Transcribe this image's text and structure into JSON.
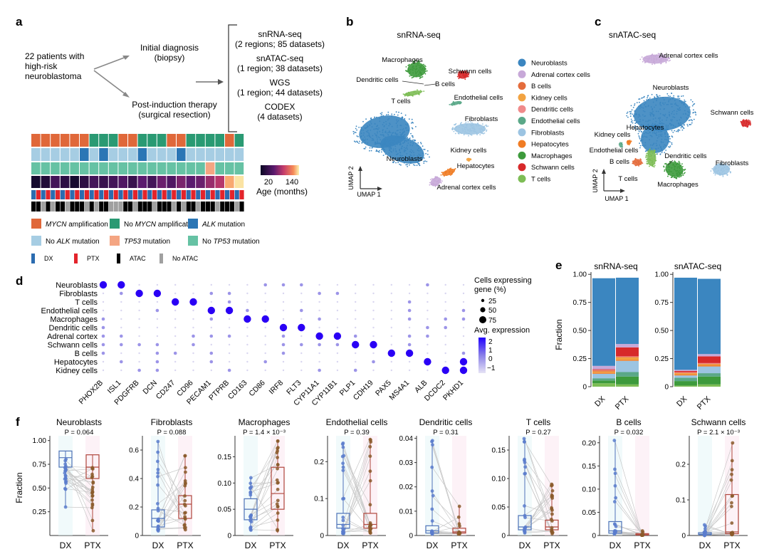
{
  "colors": {
    "neuroblasts": "#3b86c0",
    "adrenal": "#c7a8d8",
    "bcells": "#e46c3c",
    "kidney": "#f2a341",
    "dendritic": "#f08a8a",
    "endothelial": "#5aa888",
    "fibroblasts": "#9cc4e2",
    "hepatocytes": "#f07c24",
    "macrophages": "#3d9a3c",
    "schwann": "#d7292a",
    "tcells": "#7dbd55",
    "mycn": "#e0683a",
    "nomycn": "#2a9a73",
    "alk": "#2b76b5",
    "noalk": "#a6cde3",
    "tp53": "#f4a582",
    "notp53": "#66c2a4",
    "dx": "#2b6cb0",
    "ptx": "#e3242b",
    "atac": "#000000",
    "noatac": "#a0a0a0",
    "dx_box": "#4f73b8",
    "ptx_box": "#b0473d",
    "dx_dot": "#5b7ccc",
    "ptx_dot": "#8b5a2b"
  },
  "panel_a": {
    "label": "a",
    "patients": "22 patients with\nhigh-risk\nneuroblastoma",
    "initial": "Initial diagnosis\n(biopsy)",
    "post": "Post-induction therapy\n(surgical resection)",
    "datasets": [
      {
        "title": "snRNA-seq",
        "detail": "(2 regions; 85 datasets)"
      },
      {
        "title": "snATAC-seq",
        "detail": "(1 region; 38 datasets)"
      },
      {
        "title": "WGS",
        "detail": "(1 region; 44 datasets)"
      },
      {
        "title": "CODEX",
        "detail": "(4 datasets)"
      }
    ],
    "mycn_row": [
      1,
      1,
      1,
      1,
      1,
      1,
      0,
      0,
      0,
      1,
      1,
      0,
      0,
      0,
      1,
      1,
      0,
      0,
      0,
      0,
      1,
      0
    ],
    "alk_row": [
      0,
      0,
      0,
      0,
      0,
      1,
      0,
      1,
      0,
      0,
      0,
      1,
      0,
      0,
      0,
      1,
      0,
      0,
      0,
      0,
      0,
      0
    ],
    "tp53_row": [
      0,
      0,
      0,
      0,
      0,
      0,
      0,
      0,
      0,
      0,
      0,
      0,
      0,
      0,
      0,
      0,
      0,
      0,
      1,
      0,
      0,
      0
    ],
    "age_row": [
      10,
      15,
      30,
      20,
      10,
      20,
      30,
      25,
      30,
      35,
      25,
      40,
      30,
      45,
      35,
      50,
      40,
      45,
      60,
      70,
      120,
      140
    ],
    "sample_row1": "DPDPDPDPDPDPDPDPDPDPDPDPDPDPDPDPDPDPDPDPDPDP",
    "atac_row": [
      1,
      1,
      0,
      1,
      0,
      1,
      1,
      0,
      1,
      1,
      1,
      0,
      1,
      0,
      1,
      1,
      0,
      0,
      0,
      1,
      1,
      0,
      1,
      1,
      1,
      0,
      1,
      1,
      1,
      0,
      1,
      0,
      1,
      1,
      0,
      1,
      1,
      1,
      0,
      1,
      1,
      1,
      0,
      1
    ],
    "age_label": "Age (months)",
    "age_ticks": [
      "20",
      "140"
    ],
    "legend": [
      {
        "key": "mycn",
        "label": "MYCN amplification",
        "italic": "MYCN"
      },
      {
        "key": "nomycn",
        "label": "No MYCN amplification",
        "italic": "MYCN"
      },
      {
        "key": "alk",
        "label": "ALK mutation",
        "italic": "ALK"
      },
      {
        "key": "noalk",
        "label": "No ALK mutation",
        "italic": "ALK"
      },
      {
        "key": "tp53",
        "label": "TP53 mutation",
        "italic": "TP53"
      },
      {
        "key": "notp53",
        "label": "No TP53 mutation",
        "italic": "TP53"
      }
    ],
    "legend2": [
      {
        "key": "dx",
        "label": "DX"
      },
      {
        "key": "ptx",
        "label": "PTX"
      },
      {
        "key": "atac",
        "label": "ATAC"
      },
      {
        "key": "noatac",
        "label": "No ATAC"
      }
    ]
  },
  "panel_b": {
    "label": "b",
    "title": "snRNA-seq",
    "umap1": "UMAP 1",
    "umap2": "UMAP 2",
    "labels": {
      "macrophages": "Macrophages",
      "schwann": "Schwann cells",
      "dendritic": "Dendritic cells",
      "bcells": "B cells",
      "tcells": "T cells",
      "endothelial": "Endothelial cells",
      "fibroblasts": "Fibroblasts",
      "kidney": "Kidney cells",
      "hepatocytes": "Hepatocytes",
      "neuroblasts": "Neuroblasts",
      "adrenal": "Adrenal cortex cells"
    },
    "legend": [
      {
        "key": "neuroblasts",
        "label": "Neuroblasts"
      },
      {
        "key": "adrenal",
        "label": "Adrenal cortex cells"
      },
      {
        "key": "bcells",
        "label": "B cells"
      },
      {
        "key": "kidney",
        "label": "Kidney cells"
      },
      {
        "key": "dendritic",
        "label": "Dendritic cells"
      },
      {
        "key": "endothelial",
        "label": "Endothelial cells"
      },
      {
        "key": "fibroblasts",
        "label": "Fibroblasts"
      },
      {
        "key": "hepatocytes",
        "label": "Hepatocytes"
      },
      {
        "key": "macrophages",
        "label": "Macrophages"
      },
      {
        "key": "schwann",
        "label": "Schwann cells"
      },
      {
        "key": "tcells",
        "label": "T cells"
      }
    ]
  },
  "panel_c": {
    "label": "c",
    "title": "snATAC-seq",
    "umap1": "UMAP 1",
    "umap2": "UMAP 2",
    "labels": {
      "adrenal": "Adrenal cortex cells",
      "neuroblasts": "Neuroblasts",
      "schwann": "Schwann cells",
      "hepatocytes": "Hepatocytes",
      "kidney": "Kidney cells",
      "endothelial": "Endothelial cells",
      "dendritic": "Dendritic cells",
      "bcells": "B cells",
      "tcells": "T cells",
      "fibroblasts": "Fibroblasts",
      "macrophages": "Macrophages"
    }
  },
  "panel_d": {
    "label": "d",
    "cell_types": [
      "Neuroblasts",
      "Fibroblasts",
      "T cells",
      "Endothelial cells",
      "Macrophages",
      "Dendritic cells",
      "Adrenal cortex",
      "Schwann cells",
      "B cells",
      "Hepatocytes",
      "Kidney cells"
    ],
    "genes": [
      "PHOX2B",
      "ISL1",
      "PDGFRB",
      "DCN",
      "CD247",
      "CD96",
      "PECAM1",
      "PTPRB",
      "CD163",
      "CD86",
      "IRF8",
      "FLT3",
      "CYP11A1",
      "CYP11B1",
      "PLP1",
      "CDH19",
      "PAX5",
      "MS4A1",
      "ALB",
      "DCDC2",
      "PKHD1"
    ],
    "size_title": "Cells expressing\ngene (%)",
    "size_ticks": [
      "25",
      "50",
      "75"
    ],
    "color_title": "Avg. expression",
    "color_ticks": [
      "2",
      "1",
      "0",
      "−1"
    ],
    "high": [
      [
        0,
        0
      ],
      [
        0,
        1
      ],
      [
        1,
        2
      ],
      [
        1,
        3
      ],
      [
        2,
        4
      ],
      [
        2,
        5
      ],
      [
        3,
        6
      ],
      [
        3,
        7
      ],
      [
        4,
        8
      ],
      [
        4,
        9
      ],
      [
        5,
        10
      ],
      [
        5,
        11
      ],
      [
        6,
        12
      ],
      [
        6,
        13
      ],
      [
        7,
        14
      ],
      [
        7,
        15
      ],
      [
        8,
        16
      ],
      [
        8,
        17
      ],
      [
        9,
        18
      ],
      [
        10,
        19
      ],
      [
        10,
        20
      ],
      [
        9,
        20
      ]
    ]
  },
  "panel_e": {
    "label": "e",
    "ylabel": "Fraction",
    "yticks": [
      "0",
      "0.25",
      "0.50",
      "0.75",
      "1.00"
    ],
    "charts": [
      {
        "title": "snRNA-seq",
        "groups": [
          {
            "name": "DX",
            "stack": {
              "tcells": 0.03,
              "macrophages": 0.025,
              "endothelial": 0.02,
              "fibroblasts": 0.04,
              "hepatocytes": 0.01,
              "kidney": 0.01,
              "bcells": 0.01,
              "dendritic": 0.005,
              "schwann": 0.005,
              "adrenal": 0.03,
              "neuroblasts": 0.78
            }
          },
          {
            "name": "PTX",
            "stack": {
              "tcells": 0.02,
              "macrophages": 0.07,
              "endothelial": 0.04,
              "fibroblasts": 0.1,
              "hepatocytes": 0.01,
              "kidney": 0.02,
              "bcells": 0.005,
              "dendritic": 0.005,
              "schwann": 0.08,
              "adrenal": 0.03,
              "neuroblasts": 0.59
            }
          }
        ]
      },
      {
        "title": "snATAC-seq",
        "groups": [
          {
            "name": "DX",
            "stack": {
              "tcells": 0.01,
              "macrophages": 0.04,
              "endothelial": 0.03,
              "fibroblasts": 0.02,
              "hepatocytes": 0.01,
              "kidney": 0.01,
              "bcells": 0.005,
              "dendritic": 0.005,
              "schwann": 0.01,
              "adrenal": 0.01,
              "neuroblasts": 0.82
            }
          },
          {
            "name": "PTX",
            "stack": {
              "tcells": 0.02,
              "macrophages": 0.07,
              "endothelial": 0.03,
              "fibroblasts": 0.06,
              "hepatocytes": 0.01,
              "kidney": 0.01,
              "bcells": 0.005,
              "dendritic": 0.005,
              "schwann": 0.06,
              "adrenal": 0.02,
              "neuroblasts": 0.67
            }
          }
        ]
      }
    ]
  },
  "panel_f": {
    "label": "f",
    "ylabel": "Fraction",
    "xlabels": [
      "DX",
      "PTX"
    ],
    "charts": [
      {
        "title": "Neuroblasts",
        "p": "P = 0.064",
        "ymax": 1.05,
        "ymin": 0.0,
        "ticks": [
          0.25,
          0.5,
          0.75,
          1.0
        ],
        "tick_labels": [
          "0.25",
          "0.50",
          "0.75",
          "1.00"
        ],
        "dx": [
          0.54,
          0.72,
          0.82,
          0.89,
          0.3
        ],
        "ptx": [
          0.41,
          0.6,
          0.72,
          0.85,
          0.05
        ]
      },
      {
        "title": "Fibroblasts",
        "p": "P = 0.088",
        "ymax": 0.7,
        "ymin": 0.0,
        "ticks": [
          0,
          0.2,
          0.4,
          0.6
        ],
        "tick_labels": [
          "0",
          "0.2",
          "0.4",
          "0.6"
        ],
        "dx": [
          0.03,
          0.06,
          0.12,
          0.18,
          0.66
        ],
        "ptx": [
          0.04,
          0.12,
          0.22,
          0.28,
          0.56
        ]
      },
      {
        "title": "Macrophages",
        "p": "P = 1.4 × 10⁻³",
        "ymax": 0.19,
        "ymin": 0.0,
        "ticks": [
          0,
          0.05,
          0.1,
          0.15
        ],
        "tick_labels": [
          "0",
          "0.05",
          "0.10",
          "0.15"
        ],
        "dx": [
          0.01,
          0.03,
          0.05,
          0.07,
          0.11
        ],
        "ptx": [
          0.005,
          0.05,
          0.08,
          0.13,
          0.18
        ]
      },
      {
        "title": "Endothelial cells",
        "p": "P = 0.39",
        "ymax": 0.27,
        "ymin": 0.0,
        "ticks": [
          0,
          0.1,
          0.2
        ],
        "tick_labels": [
          "0",
          "0.1",
          "0.2"
        ],
        "dx": [
          0.005,
          0.02,
          0.03,
          0.06,
          0.25
        ],
        "ptx": [
          0.005,
          0.02,
          0.03,
          0.06,
          0.26
        ]
      },
      {
        "title": "Dendritic cells",
        "p": "P = 0.31",
        "ymax": 0.041,
        "ymin": 0.0,
        "ticks": [
          0,
          0.01,
          0.02,
          0.03,
          0.04
        ],
        "tick_labels": [
          "0",
          "0.01",
          "0.02",
          "0.03",
          "0.04"
        ],
        "dx": [
          0.0005,
          0.001,
          0.002,
          0.004,
          0.039
        ],
        "ptx": [
          0.0005,
          0.001,
          0.0015,
          0.003,
          0.012
        ]
      },
      {
        "title": "T cells",
        "p": "P = 0.27",
        "ymax": 0.175,
        "ymin": 0.0,
        "ticks": [
          0,
          0.05,
          0.1,
          0.15
        ],
        "tick_labels": [
          "0",
          "0.05",
          "0.10",
          "0.15"
        ],
        "dx": [
          0.003,
          0.01,
          0.015,
          0.035,
          0.17
        ],
        "ptx": [
          0.003,
          0.01,
          0.015,
          0.027,
          0.09
        ]
      },
      {
        "title": "B cells",
        "p": "P = 0.032",
        "ymax": 0.215,
        "ymin": 0.0,
        "ticks": [
          0,
          0.05,
          0.1,
          0.15,
          0.2
        ],
        "tick_labels": [
          "0",
          "0.05",
          "0.10",
          "0.15",
          "0.20"
        ],
        "dx": [
          0.002,
          0.005,
          0.01,
          0.03,
          0.205
        ],
        "ptx": [
          0.0005,
          0.001,
          0.002,
          0.004,
          0.01
        ]
      },
      {
        "title": "Schwann cells",
        "p": "P = 2.1 × 10⁻³",
        "ymax": 0.28,
        "ymin": 0.0,
        "ticks": [
          0,
          0.1,
          0.2
        ],
        "tick_labels": [
          "0",
          "0.1",
          "0.2"
        ],
        "dx": [
          0.0,
          0.002,
          0.004,
          0.008,
          0.03
        ],
        "ptx": [
          0.002,
          0.005,
          0.01,
          0.115,
          0.26
        ]
      }
    ]
  }
}
